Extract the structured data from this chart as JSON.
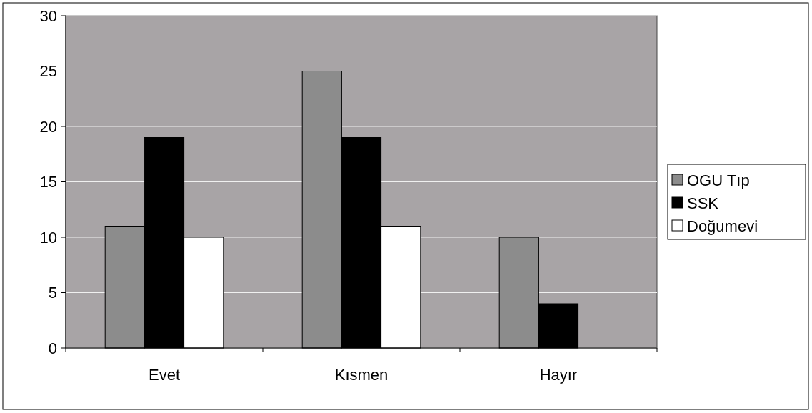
{
  "chart_data": {
    "type": "bar",
    "categories": [
      "Evet",
      "Kısmen",
      "Hayır"
    ],
    "series": [
      {
        "name": "OGU Tıp",
        "color": "#8c8c8c",
        "values": [
          11,
          25,
          10
        ]
      },
      {
        "name": "SSK",
        "color": "#000000",
        "values": [
          19,
          19,
          4
        ]
      },
      {
        "name": "Doğumevi",
        "color": "#ffffff",
        "values": [
          10,
          11,
          0
        ]
      }
    ],
    "ylim": [
      0,
      30
    ],
    "yticks": [
      0,
      5,
      10,
      15,
      20,
      25,
      30
    ],
    "grid": "y",
    "legend": "right"
  }
}
